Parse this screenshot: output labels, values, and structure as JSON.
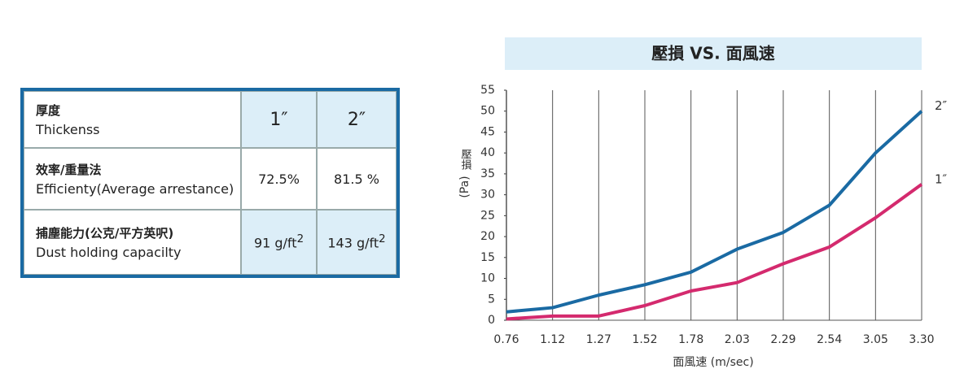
{
  "table": {
    "rows": [
      {
        "zh": "厚度",
        "en": "Thickenss",
        "cells": [
          "1″",
          "2″"
        ]
      },
      {
        "zh": "效率/重量法",
        "en": "Efficienty(Average arrestance)",
        "cells": [
          "72.5%",
          "81.5 %"
        ]
      },
      {
        "zh": "捕塵能力",
        "zh_note": "(公克/平方英呎)",
        "en": "Dust holding capacilty",
        "cells": [
          {
            "text": "91 g/ft",
            "sup": "2"
          },
          {
            "text": "143 g/ft",
            "sup": "2"
          }
        ]
      }
    ]
  },
  "chart_data": {
    "type": "line",
    "title": "壓損 VS. 面風速",
    "categories": [
      "0.76",
      "1.12",
      "1.27",
      "1.52",
      "1.78",
      "2.03",
      "2.29",
      "2.54",
      "3.05",
      "3.30"
    ],
    "series": [
      {
        "name": "2″",
        "color": "#1a6aa3",
        "values": [
          2,
          3,
          6,
          8.5,
          11.5,
          17,
          21,
          27.5,
          40,
          50
        ]
      },
      {
        "name": "1″",
        "color": "#d42a6e",
        "values": [
          0.3,
          1,
          1,
          3.5,
          7,
          9,
          13.5,
          17.5,
          24.5,
          32.5
        ]
      }
    ],
    "xlabel": "面風速 (m/sec)",
    "ylabel": "壓損",
    "ylabel_unit": "(Pa)",
    "ylim": [
      0,
      55
    ],
    "yticks": [
      0,
      5,
      10,
      15,
      20,
      25,
      30,
      35,
      40,
      45,
      50,
      55
    ],
    "grid": true
  }
}
